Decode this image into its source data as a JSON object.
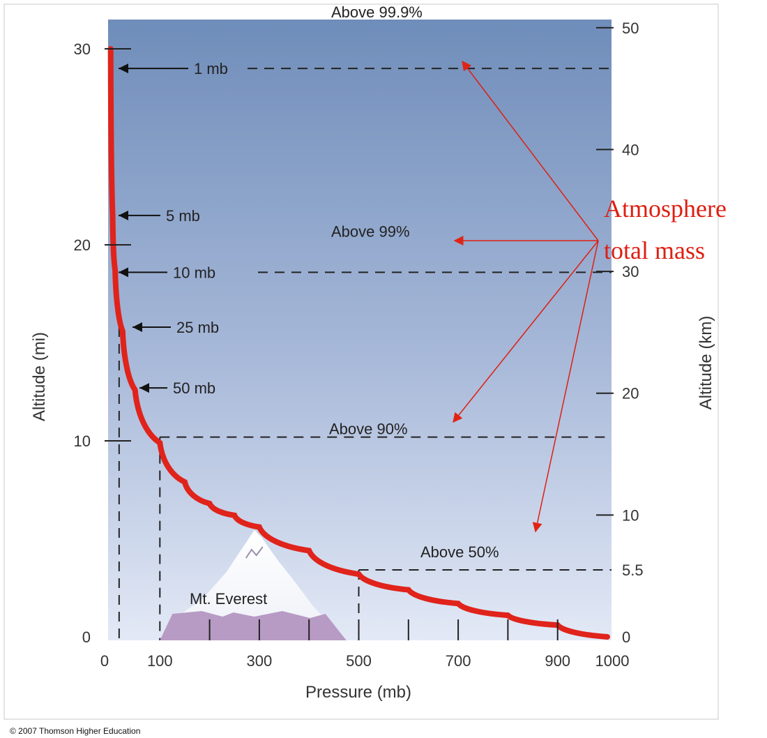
{
  "chart_data": {
    "type": "line",
    "xlabel": "Pressure (mb)",
    "ylabel": "Altitude (mi)",
    "y2label": "Altitude (km)",
    "xlim": [
      0,
      1000
    ],
    "ylim": [
      0,
      30
    ],
    "y2lim": [
      0,
      50
    ],
    "x_ticks": [
      0,
      100,
      300,
      500,
      700,
      900,
      1000
    ],
    "x_minor_ticks": [
      200,
      300,
      400,
      500,
      600,
      700,
      800,
      900
    ],
    "y_ticks": [
      0,
      10,
      20,
      30
    ],
    "y2_ticks": [
      0,
      5.5,
      10,
      20,
      30,
      40,
      50
    ],
    "series": [
      {
        "color": "#e0231b",
        "x": [
          1,
          5,
          10,
          25,
          50,
          100,
          150,
          200,
          250,
          300,
          400,
          500,
          600,
          700,
          800,
          900,
          1000
        ],
        "y": [
          30,
          21.5,
          18.7,
          15.6,
          12.6,
          9.9,
          7.9,
          6.8,
          6.2,
          5.6,
          4.4,
          3.2,
          2.4,
          1.7,
          1.1,
          0.6,
          0
        ]
      }
    ],
    "pressure_labels": [
      {
        "text": "1 mb",
        "alt_mi": 29,
        "length": 100,
        "dashed": true,
        "dash_from": 700
      },
      {
        "text": "5 mb",
        "alt_mi": 21.5,
        "length": 60,
        "dashed": false
      },
      {
        "text": "10 mb",
        "alt_mi": 18.6,
        "length": 70,
        "dashed": true,
        "dash_from": 600
      },
      {
        "text": "25 mb",
        "alt_mi": 15.8,
        "length": 55,
        "dashed": false
      },
      {
        "text": "50 mb",
        "alt_mi": 12.7,
        "length": 40,
        "dashed": false
      }
    ],
    "mass_levels": [
      {
        "text": "Above 99.9%",
        "label_alt_km": 51.3,
        "line_alt_km": null
      },
      {
        "text": "Above 99%",
        "label_alt_km": 33.3,
        "line_alt_km": null
      },
      {
        "text": "Above 90%",
        "label_alt_km": 17.1,
        "line_alt_km": 16.4,
        "drop_x": 100
      },
      {
        "text": "Above 50%",
        "label_alt_km": 7.0,
        "line_alt_km": 5.5,
        "drop_x": 500
      }
    ],
    "annotation": {
      "lines": [
        "Atmosphere",
        "total mass"
      ],
      "color": "#dd1f12",
      "arrow_targets": [
        {
          "x": 1100,
          "alt_km": 48.3
        },
        {
          "x": 1055,
          "alt_km": 35.2
        },
        {
          "x": 1097,
          "alt_km": 19.0
        },
        {
          "x": 1158,
          "alt_km": 8.8
        }
      ]
    },
    "mountain": {
      "label": "Mt. Everest",
      "x_range": [
        100,
        475
      ],
      "peak_x": 290
    },
    "grid": false
  },
  "footer": {
    "copyright": "© 2007 Thomson Higher Education"
  }
}
